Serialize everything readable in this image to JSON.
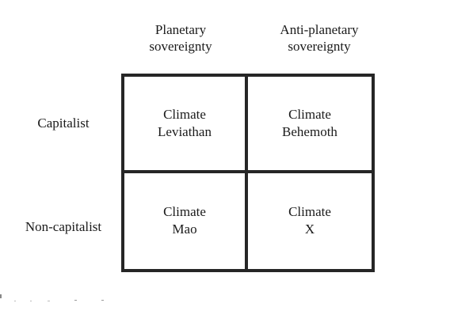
{
  "column_headers": [
    {
      "line1": "Planetary",
      "line2": "sovereignty"
    },
    {
      "line1": "Anti-planetary",
      "line2": "sovereignty"
    }
  ],
  "row_headers": [
    "Capitalist",
    "Non-capitalist"
  ],
  "cells": [
    [
      {
        "line1": "Climate",
        "line2": "Leviathan"
      },
      {
        "line1": "Climate",
        "line2": "Behemoth"
      }
    ],
    [
      {
        "line1": "Climate",
        "line2": "Mao"
      },
      {
        "line1": "Climate",
        "line2": "X"
      }
    ]
  ],
  "colors": {
    "grid_border": "#262626",
    "text": "#1a1a1a",
    "background": "#ffffff"
  }
}
